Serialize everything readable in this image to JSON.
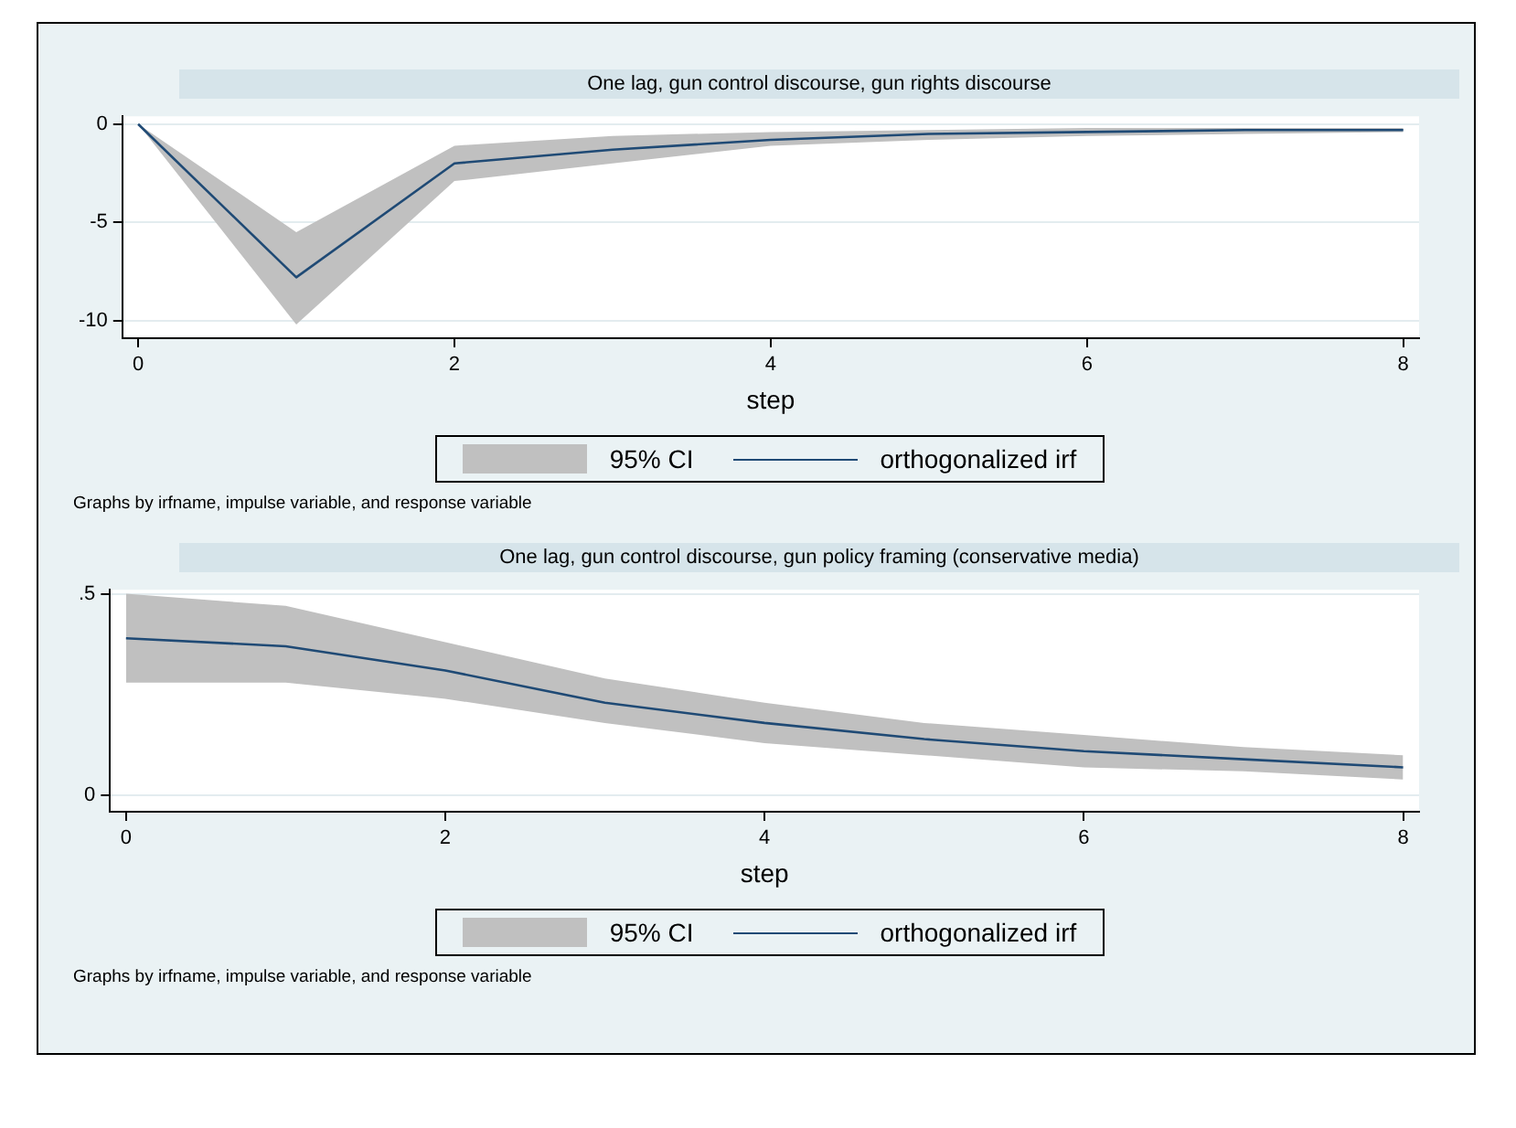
{
  "chart_data": [
    {
      "type": "line",
      "title": "One lag, gun control discourse, gun rights discourse",
      "xlabel": "step",
      "x": [
        0,
        1,
        2,
        3,
        4,
        5,
        6,
        7,
        8
      ],
      "xlim": [
        -0.1,
        8.1
      ],
      "xticks": [
        0,
        2,
        4,
        6,
        8
      ],
      "ylim": [
        -10.9,
        0.4
      ],
      "yticks": [
        -10,
        -5,
        0
      ],
      "grid": "y",
      "legend": "bottom",
      "series": [
        {
          "name": "orthogonalized irf",
          "color": "#1f4a75",
          "values": [
            0,
            -7.8,
            -2.0,
            -1.3,
            -0.8,
            -0.5,
            -0.4,
            -0.3,
            -0.3
          ],
          "lower": [
            0,
            -10.2,
            -2.9,
            -2.0,
            -1.1,
            -0.8,
            -0.6,
            -0.5,
            -0.4
          ],
          "upper": [
            0,
            -5.5,
            -1.1,
            -0.6,
            -0.4,
            -0.3,
            -0.2,
            -0.2,
            -0.2
          ]
        }
      ],
      "annotations": [
        "95% CI",
        "Graphs by irfname, impulse variable, and response variable"
      ]
    },
    {
      "type": "line",
      "title": "One lag, gun control discourse, gun policy framing (conservative media)",
      "xlabel": "step",
      "x": [
        0,
        1,
        2,
        3,
        4,
        5,
        6,
        7,
        8
      ],
      "xlim": [
        -0.1,
        8.1
      ],
      "xticks": [
        0,
        2,
        4,
        6,
        8
      ],
      "ylim": [
        -0.04,
        0.51
      ],
      "yticks": [
        0,
        {
          "value": 0.5,
          "label": ".5"
        }
      ],
      "grid": "y",
      "legend": "bottom",
      "series": [
        {
          "name": "orthogonalized irf",
          "color": "#1f4a75",
          "values": [
            0.39,
            0.37,
            0.31,
            0.23,
            0.18,
            0.14,
            0.11,
            0.09,
            0.07
          ],
          "lower": [
            0.28,
            0.28,
            0.24,
            0.18,
            0.13,
            0.1,
            0.07,
            0.06,
            0.04
          ],
          "upper": [
            0.5,
            0.47,
            0.38,
            0.29,
            0.23,
            0.18,
            0.15,
            0.12,
            0.1
          ]
        }
      ],
      "annotations": [
        "95% CI",
        "Graphs by irfname, impulse variable, and response variable"
      ]
    }
  ]
}
